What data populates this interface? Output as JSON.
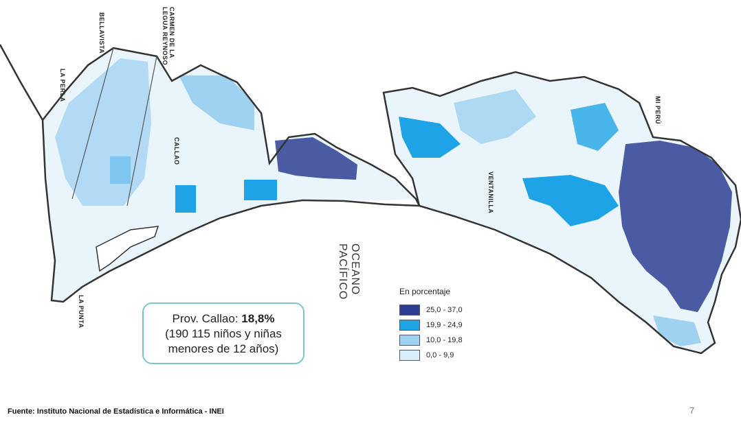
{
  "map": {
    "district_labels": {
      "bellavista": "BELLAVISTA",
      "carmen_de_la_legua": "CARMEN DE LA\nLEGUA REYNOSO",
      "la_perla": "LA PERLA",
      "callao": "CALLAO",
      "ventanilla": "VENTANILLA",
      "mi_peru": "MI PERÚ",
      "la_punta": "LA PUNTA"
    },
    "ocean_label": "OCEANO\nPACÍFICO",
    "colors": {
      "outline": "#333333",
      "class_1": "#2e3f93",
      "class_2": "#1ea4e6",
      "class_3": "#9fd2f1",
      "class_4": "#d9eefb"
    }
  },
  "summary": {
    "line1_prefix": "Prov. Callao: ",
    "line1_value": "18,8%",
    "line2": "(190 115 niños y niñas",
    "line3": "menores de 12 años)"
  },
  "legend": {
    "title": "En porcentaje",
    "items": [
      {
        "label": "25,0 - 37,0",
        "color": "#2e3f93"
      },
      {
        "label": "19,9 - 24,9",
        "color": "#1ea4e6"
      },
      {
        "label": "10,0 - 19,8",
        "color": "#9fd2f1"
      },
      {
        "label": "0,0 - 9,9",
        "color": "#d9eefb"
      }
    ]
  },
  "footer": {
    "source": "Fuente: Instituto Nacional de Estadística e Informática - INEI",
    "page_number": "7"
  }
}
